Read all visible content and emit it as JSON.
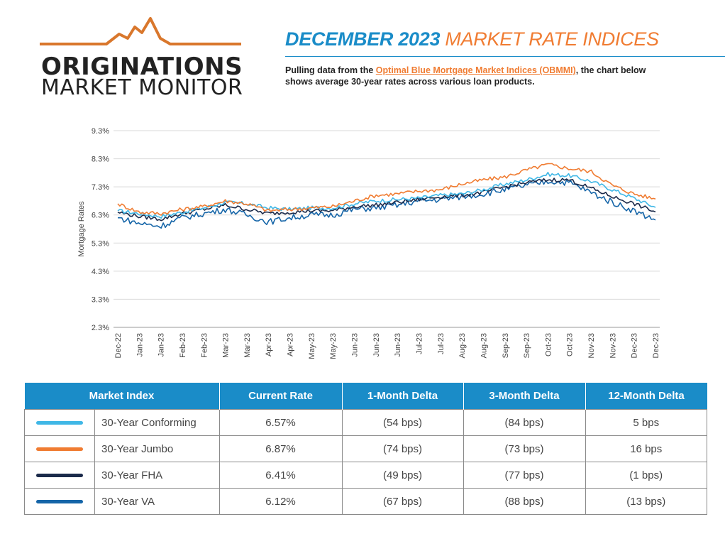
{
  "logo": {
    "line1": "ORIGINATIONS",
    "line2": "MARKET MONITOR",
    "mountain_color": "#d9772c"
  },
  "header": {
    "title_part1": "DECEMBER 2023",
    "title_part2": "MARKET RATE INDICES",
    "subtitle_pre": "Pulling data from the ",
    "subtitle_link": "Optimal Blue Mortgage Market Indices (OBMMI)",
    "subtitle_post": ", the chart below shows average 30-year rates across various loan products."
  },
  "chart_data": {
    "type": "line",
    "ylabel": "Mortgage Rates",
    "xlabel": "",
    "ylim": [
      2.3,
      9.3
    ],
    "y_ticks": [
      "9.3%",
      "8.3%",
      "7.3%",
      "6.3%",
      "5.3%",
      "4.3%",
      "3.3%",
      "2.3%"
    ],
    "x_ticks": [
      "Dec-22",
      "Jan-23",
      "Jan-23",
      "Feb-23",
      "Feb-23",
      "Mar-23",
      "Mar-23",
      "Apr-23",
      "Apr-23",
      "May-23",
      "May-23",
      "Jun-23",
      "Jun-23",
      "Jun-23",
      "Jul-23",
      "Jul-23",
      "Aug-23",
      "Aug-23",
      "Sep-23",
      "Sep-23",
      "Oct-23",
      "Oct-23",
      "Nov-23",
      "Nov-23",
      "Dec-23",
      "Dec-23"
    ],
    "grid": "horizontal",
    "series": [
      {
        "name": "30-Year Conforming",
        "color": "#3fb7e6",
        "values": [
          6.45,
          6.35,
          6.25,
          6.4,
          6.55,
          6.75,
          6.7,
          6.55,
          6.5,
          6.55,
          6.55,
          6.7,
          6.8,
          6.85,
          6.9,
          7.0,
          7.05,
          7.2,
          7.4,
          7.55,
          7.75,
          7.7,
          7.5,
          7.2,
          6.9,
          6.57
        ]
      },
      {
        "name": "30-Year Jumbo",
        "color": "#f07c32",
        "values": [
          6.7,
          6.4,
          6.35,
          6.5,
          6.6,
          6.8,
          6.7,
          6.45,
          6.5,
          6.55,
          6.6,
          6.8,
          7.0,
          7.05,
          7.15,
          7.2,
          7.4,
          7.55,
          7.65,
          7.9,
          8.1,
          7.95,
          7.85,
          7.35,
          7.05,
          6.87
        ]
      },
      {
        "name": "30-Year FHA",
        "color": "#1b2a4a",
        "values": [
          6.4,
          6.25,
          6.15,
          6.35,
          6.5,
          6.65,
          6.5,
          6.35,
          6.4,
          6.45,
          6.45,
          6.6,
          6.65,
          6.75,
          6.85,
          6.95,
          7.0,
          7.1,
          7.3,
          7.45,
          7.55,
          7.55,
          7.25,
          6.95,
          6.7,
          6.41
        ]
      },
      {
        "name": "30-Year VA",
        "color": "#1565a8",
        "values": [
          6.2,
          6.0,
          5.9,
          6.2,
          6.35,
          6.5,
          6.3,
          6.05,
          6.2,
          6.3,
          6.3,
          6.5,
          6.55,
          6.65,
          6.8,
          6.85,
          6.95,
          7.05,
          7.2,
          7.35,
          7.5,
          7.45,
          7.1,
          6.75,
          6.45,
          6.12
        ]
      }
    ]
  },
  "table": {
    "headers": [
      "Market Index",
      "Current Rate",
      "1-Month Delta",
      "3-Month Delta",
      "12-Month Delta"
    ],
    "rows": [
      {
        "name": "30-Year Conforming",
        "color": "#3fb7e6",
        "rate": "6.57%",
        "m1": "(54 bps)",
        "m3": "(84 bps)",
        "m12": "5 bps"
      },
      {
        "name": "30-Year Jumbo",
        "color": "#f07c32",
        "rate": "6.87%",
        "m1": "(74 bps)",
        "m3": "(73 bps)",
        "m12": "16 bps"
      },
      {
        "name": "30-Year FHA",
        "color": "#1b2a4a",
        "rate": "6.41%",
        "m1": "(49 bps)",
        "m3": "(77 bps)",
        "m12": "(1 bps)"
      },
      {
        "name": "30-Year VA",
        "color": "#1565a8",
        "rate": "6.12%",
        "m1": "(67 bps)",
        "m3": "(88 bps)",
        "m12": "(13 bps)"
      }
    ]
  }
}
